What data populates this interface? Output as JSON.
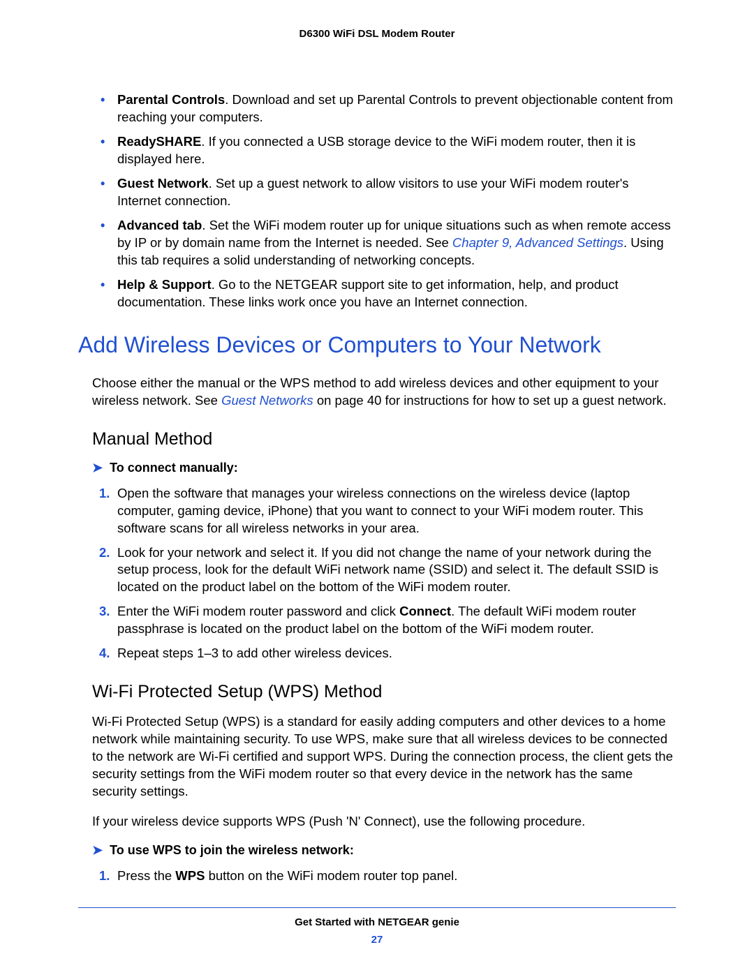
{
  "header": {
    "title": "D6300 WiFi DSL Modem Router"
  },
  "bullets": [
    {
      "bold": "Parental Controls",
      "rest": ". Download and set up Parental Controls to prevent objectionable content from reaching your computers."
    },
    {
      "bold": "ReadySHARE",
      "rest": ". If you connected a USB storage device to the WiFi modem router, then it is displayed here."
    },
    {
      "bold": "Guest Network",
      "rest": ". Set up a guest network to allow visitors to use your WiFi modem router's Internet connection."
    },
    {
      "bold": "Advanced tab",
      "pre": ". Set the WiFi modem router up for unique situations such as when remote access by IP or by domain name from the Internet is needed. See ",
      "link": "Chapter 9, Advanced Settings",
      "post": ". Using this tab requires a solid understanding of networking concepts."
    },
    {
      "bold": "Help & Support",
      "rest": ". Go to the NETGEAR support site to get information, help, and product documentation. These links work once you have an Internet connection."
    }
  ],
  "h1": "Add Wireless Devices or Computers to Your Network",
  "intro": {
    "pre": "Choose either the manual or the WPS method to add wireless devices and other equipment to your wireless network. See ",
    "link": "Guest Networks",
    "post": " on page 40 for instructions for how to set up a guest network."
  },
  "manual": {
    "h2": "Manual Method",
    "proc": "To connect manually:",
    "steps": [
      "Open the software that manages your wireless connections on the wireless device (laptop computer, gaming device, iPhone) that you want to connect to your WiFi modem router. This software scans for all wireless networks in your area.",
      "Look for your network and select it. If you did not change the name of your network during the setup process, look for the default WiFi network name (SSID) and select it. The default SSID is located on the product label on the bottom of the WiFi modem router.",
      {
        "pre": "Enter the WiFi modem router password and click ",
        "bold": "Connect",
        "post": ". The default WiFi modem router passphrase is located on the product label on the bottom of the WiFi modem router."
      },
      "Repeat steps 1–3 to add other wireless devices."
    ]
  },
  "wps": {
    "h2": "Wi-Fi Protected Setup (WPS) Method",
    "p1": "Wi-Fi Protected Setup (WPS) is a standard for easily adding computers and other devices to a home network while maintaining security. To use WPS, make sure that all wireless devices to be connected to the network are Wi-Fi certified and support WPS. During the connection process, the client gets the security settings from the WiFi modem router so that every device in the network has the same security settings.",
    "p2": "If your wireless device supports WPS (Push 'N' Connect), use the following procedure.",
    "proc": "To use WPS to join the wireless network:",
    "step1": {
      "pre": "Press the ",
      "bold": "WPS",
      "post": " button on the WiFi modem router top panel."
    }
  },
  "footer": {
    "title": "Get Started with NETGEAR genie",
    "page": "27"
  },
  "colors": {
    "accent": "#2050d0",
    "text": "#000000",
    "bg": "#ffffff"
  }
}
